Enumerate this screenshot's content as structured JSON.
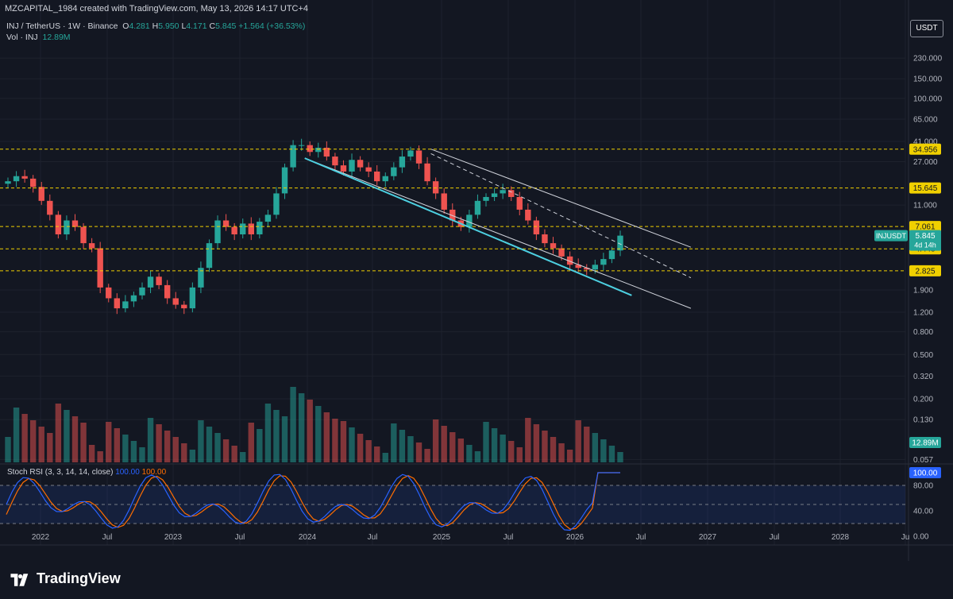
{
  "header": {
    "attribution": "MZCAPITAL_1984 created with TradingView.com, May 13, 2026 14:17 UTC+4",
    "symbol": "INJ / TetherUS · 1W · Binance",
    "o_label": "O",
    "o_value": "4.281",
    "h_label": "H",
    "h_value": "5.950",
    "l_label": "L",
    "l_value": "4.171",
    "c_label": "C",
    "c_value": "5.845",
    "change": "+1.564 (+36.53%)",
    "vol_label": "Vol · INJ",
    "vol_value": "12.89M",
    "currency_button": "USDT"
  },
  "chart_data": {
    "type": "candlestick",
    "symbol": "INJUSDT",
    "timeframe": "1W",
    "scale": "log",
    "price_axis_ticks": [
      "230.000",
      "150.000",
      "100.000",
      "65.000",
      "41.000",
      "27.000",
      "11.000",
      "1.900",
      "1.200",
      "0.800",
      "0.500",
      "0.320",
      "0.200",
      "0.130",
      "0.057"
    ],
    "x_axis_ticks": [
      "2022",
      "Jul",
      "2023",
      "Jul",
      "2024",
      "Jul",
      "2025",
      "Jul",
      "2026",
      "Jul",
      "2027",
      "Jul",
      "2028",
      "Ju"
    ],
    "horizontal_levels": [
      34.956,
      15.645,
      7.061,
      4.448,
      2.825
    ],
    "level_color": "#f0d000",
    "price_labels": [
      {
        "text": "34.956",
        "kind": "level"
      },
      {
        "text": "15.645",
        "kind": "level"
      },
      {
        "text": "7.061",
        "kind": "level"
      },
      {
        "text": "4.448",
        "kind": "level"
      },
      {
        "text": "2.825",
        "kind": "level"
      },
      {
        "text": "5.845",
        "kind": "last",
        "ticker": "INJUSDT",
        "countdown": "4d 14h"
      }
    ],
    "channel": {
      "upper_start": {
        "date": "2024-12-02",
        "price": 35
      },
      "upper_end": {
        "date": "2026-11-09",
        "price": 4.6
      },
      "lower_start": {
        "date": "2023-12-25",
        "price": 29
      },
      "lower_end": {
        "date": "2026-11-09",
        "price": 1.3
      },
      "support_end": {
        "date": "2026-06-01",
        "price": 1.7
      }
    },
    "candles_weekly_closes_approx": [
      18,
      20,
      19,
      16,
      12,
      9,
      6,
      8,
      7,
      5,
      4.5,
      2,
      1.6,
      1.3,
      1.5,
      1.7,
      2,
      2.5,
      2.1,
      1.6,
      1.4,
      1.3,
      2,
      3,
      5,
      8,
      7,
      6,
      7.5,
      6,
      7.8,
      9,
      14,
      24,
      38,
      38,
      33,
      36,
      30,
      25,
      22,
      28,
      24,
      22,
      18,
      20,
      24,
      30,
      34,
      26,
      18,
      14,
      10,
      8,
      7,
      9,
      12,
      13,
      14,
      15,
      13,
      10,
      8,
      6,
      5,
      4.5,
      3.8,
      3.2,
      3,
      2.9,
      3.2,
      3.6,
      4.3,
      5.845
    ],
    "volume_last": "12.89M",
    "stoch_rsi": {
      "label": "Stoch RSI (3, 3, 14, 14, close)",
      "k": "100.00",
      "d": "100.00",
      "ticks": [
        "80.00",
        "40.00",
        "0.00"
      ],
      "upper_band": 80,
      "lower_band": 20,
      "k_color": "#2962ff",
      "d_color": "#ff6d00"
    }
  },
  "footer": {
    "brand": "TradingView"
  }
}
